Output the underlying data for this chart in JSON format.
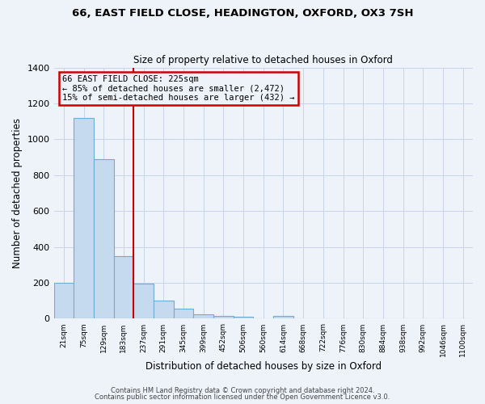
{
  "title1": "66, EAST FIELD CLOSE, HEADINGTON, OXFORD, OX3 7SH",
  "title2": "Size of property relative to detached houses in Oxford",
  "xlabel": "Distribution of detached houses by size in Oxford",
  "ylabel": "Number of detached properties",
  "bar_labels": [
    "21sqm",
    "75sqm",
    "129sqm",
    "183sqm",
    "237sqm",
    "291sqm",
    "345sqm",
    "399sqm",
    "452sqm",
    "506sqm",
    "560sqm",
    "614sqm",
    "668sqm",
    "722sqm",
    "776sqm",
    "830sqm",
    "884sqm",
    "938sqm",
    "992sqm",
    "1046sqm",
    "1100sqm"
  ],
  "bar_values": [
    200,
    1120,
    890,
    350,
    195,
    100,
    57,
    25,
    15,
    12,
    0,
    14,
    0,
    0,
    0,
    0,
    0,
    0,
    0,
    0,
    0
  ],
  "bar_color": "#c5d9ef",
  "bar_edge_color": "#6baed6",
  "vline_color": "#cc0000",
  "annotation_title": "66 EAST FIELD CLOSE: 225sqm",
  "annotation_line1": "← 85% of detached houses are smaller (2,472)",
  "annotation_line2": "15% of semi-detached houses are larger (432) →",
  "annotation_box_color": "#cc0000",
  "ylim": [
    0,
    1400
  ],
  "yticks": [
    0,
    200,
    400,
    600,
    800,
    1000,
    1200,
    1400
  ],
  "bg_color": "#eef2f9",
  "grid_color": "#c8d4e8",
  "footer1": "Contains HM Land Registry data © Crown copyright and database right 2024.",
  "footer2": "Contains public sector information licensed under the Open Government Licence v3.0."
}
